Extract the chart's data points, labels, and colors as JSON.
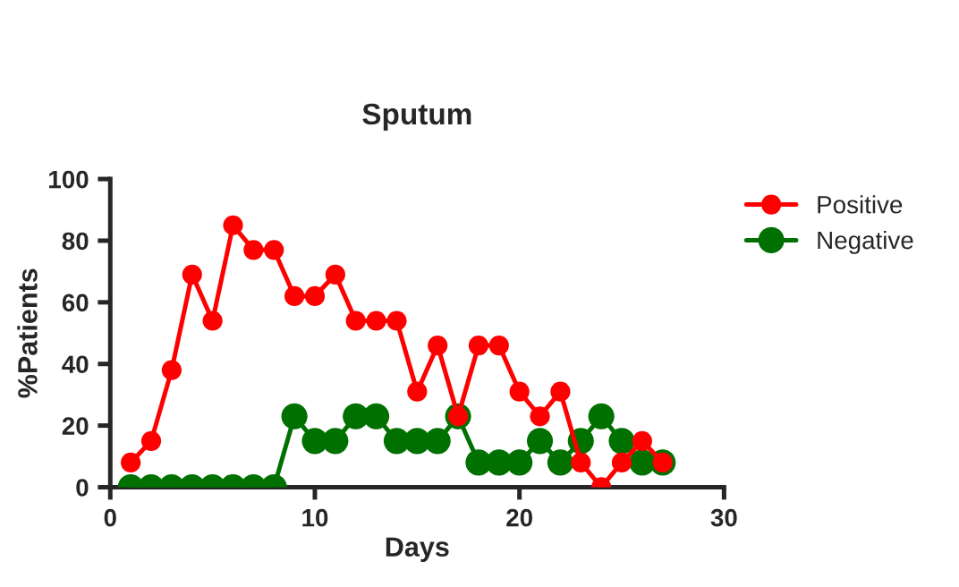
{
  "chart_data": {
    "type": "line",
    "title": "Sputum",
    "xlabel": "Days",
    "ylabel": "%Patients",
    "x": [
      1,
      2,
      3,
      4,
      5,
      6,
      7,
      8,
      9,
      10,
      11,
      12,
      13,
      14,
      15,
      16,
      17,
      18,
      19,
      20,
      21,
      22,
      23,
      24,
      25,
      26,
      27
    ],
    "series": [
      {
        "name": "Positive",
        "color": "#ff0000",
        "values": [
          8,
          15,
          38,
          69,
          54,
          85,
          77,
          77,
          62,
          62,
          69,
          54,
          54,
          54,
          31,
          46,
          23,
          46,
          46,
          31,
          23,
          31,
          8,
          0,
          8,
          15,
          8
        ]
      },
      {
        "name": "Negative",
        "color": "#007000",
        "values": [
          0,
          0,
          0,
          0,
          0,
          0,
          0,
          0,
          23,
          15,
          15,
          23,
          23,
          15,
          15,
          15,
          23,
          8,
          8,
          8,
          15,
          8,
          15,
          23,
          15,
          8,
          8
        ]
      }
    ],
    "xlim": [
      0,
      30
    ],
    "xticks": [
      0,
      10,
      20,
      30
    ],
    "ylim": [
      0,
      100
    ],
    "yticks": [
      0,
      20,
      40,
      60,
      80,
      100
    ],
    "grid": false,
    "legend": "top right",
    "marker": "circle",
    "line_style": "solid"
  }
}
